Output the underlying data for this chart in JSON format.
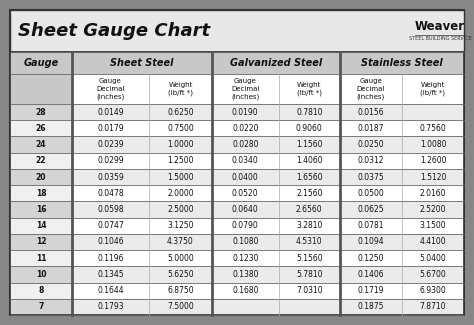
{
  "title": "Sheet Gauge Chart",
  "bg_outer": "#878787",
  "bg_inner": "#ffffff",
  "title_bg": "#ffffff",
  "table_bg": "#ffffff",
  "header_row_bg": "#d4d4d4",
  "row_odd_bg": "#d4d4d4",
  "row_even_bg": "#f0f0f0",
  "divider_color": "#888888",
  "border_color": "#333333",
  "thick_div_color": "#666666",
  "gauges": [
    "28",
    "26",
    "24",
    "22",
    "20",
    "18",
    "16",
    "14",
    "12",
    "11",
    "10",
    "8",
    "7"
  ],
  "sheet_steel_dec": [
    "0.0149",
    "0.0179",
    "0.0239",
    "0.0299",
    "0.0359",
    "0.0478",
    "0.0598",
    "0.0747",
    "0.1046",
    "0.1196",
    "0.1345",
    "0.1644",
    "0.1793"
  ],
  "sheet_steel_wt": [
    "0.6250",
    "0.7500",
    "1.0000",
    "1.2500",
    "1.5000",
    "2.0000",
    "2.5000",
    "3.1250",
    "4.3750",
    "5.0000",
    "5.6250",
    "6.8750",
    "7.5000"
  ],
  "galv_dec": [
    "0.0190",
    "0.0220",
    "0.0280",
    "0.0340",
    "0.0400",
    "0.0520",
    "0.0640",
    "0.0790",
    "0.1080",
    "0.1230",
    "0.1380",
    "0.1680",
    ""
  ],
  "galv_wt": [
    "0.7810",
    "0.9060",
    "1.1560",
    "1.4060",
    "1.6560",
    "2.1560",
    "2.6560",
    "3.2810",
    "4.5310",
    "5.1560",
    "5.7810",
    "7.0310",
    ""
  ],
  "stainless_dec": [
    "0.0156",
    "0.0187",
    "0.0250",
    "0.0312",
    "0.0375",
    "0.0500",
    "0.0625",
    "0.0781",
    "0.1094",
    "0.1250",
    "0.1406",
    "0.1719",
    "0.1875"
  ],
  "stainless_wt": [
    "",
    "0.7560",
    "1.0080",
    "1.2600",
    "1.5120",
    "2.0160",
    "2.5200",
    "3.1500",
    "4.4100",
    "5.0400",
    "5.6700",
    "6.9300",
    "7.8710"
  ],
  "fig_w": 4.74,
  "fig_h": 3.25,
  "dpi": 100
}
